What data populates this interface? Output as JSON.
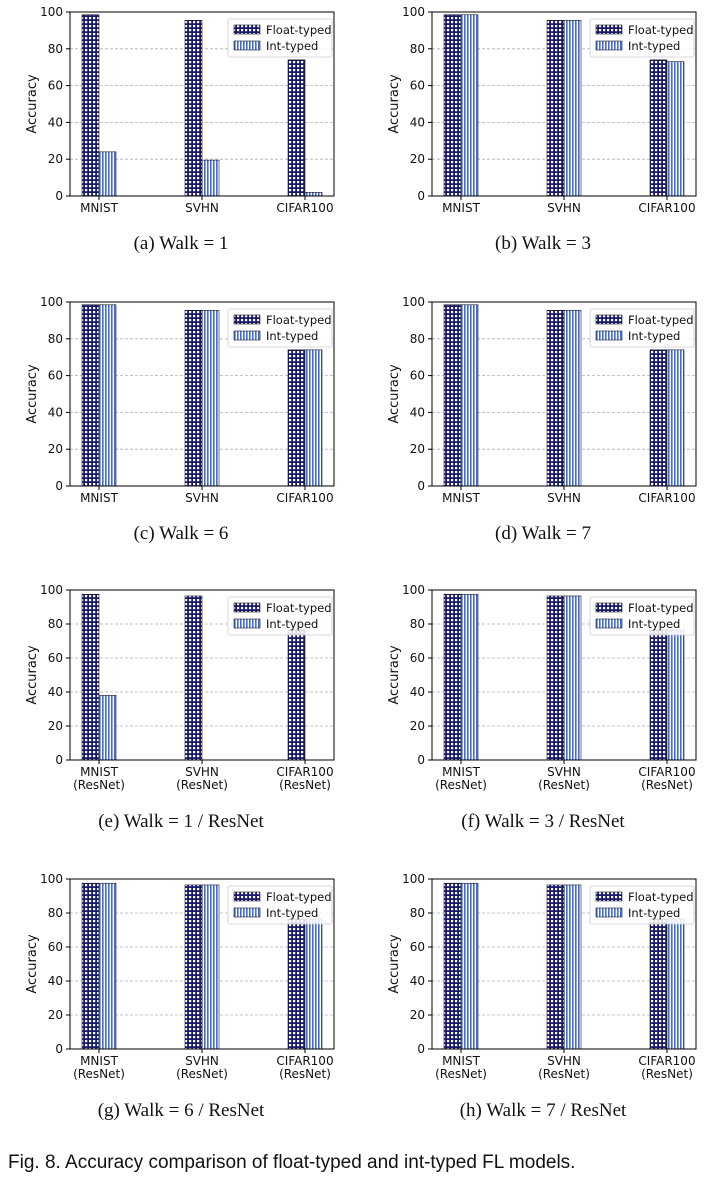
{
  "figure_caption": "Fig. 8. Accuracy comparison of float-typed and int-typed FL models.",
  "colors": {
    "float_fill": "#191970",
    "int_fill": "#4169e1",
    "edge": "#1a1a1a"
  },
  "chart_data": [
    {
      "type": "bar",
      "caption": "(a) Walk = 1",
      "ylabel": "Accuracy",
      "ylim": [
        0,
        100
      ],
      "yticks": [
        0,
        20,
        40,
        60,
        80,
        100
      ],
      "grid": true,
      "legend": "top-right",
      "categories": [
        [
          "MNIST"
        ],
        [
          "SVHN"
        ],
        [
          "CIFAR100"
        ]
      ],
      "series": [
        {
          "name": "Float-typed",
          "values": [
            98.5,
            95.5,
            74
          ]
        },
        {
          "name": "Int-typed",
          "values": [
            24,
            19.5,
            2
          ]
        }
      ]
    },
    {
      "type": "bar",
      "caption": "(b) Walk = 3",
      "ylabel": "Accuracy",
      "ylim": [
        0,
        100
      ],
      "yticks": [
        0,
        20,
        40,
        60,
        80,
        100
      ],
      "grid": true,
      "legend": "top-right",
      "categories": [
        [
          "MNIST"
        ],
        [
          "SVHN"
        ],
        [
          "CIFAR100"
        ]
      ],
      "series": [
        {
          "name": "Float-typed",
          "values": [
            98.5,
            95.5,
            74
          ]
        },
        {
          "name": "Int-typed",
          "values": [
            98.5,
            95.5,
            73
          ]
        }
      ]
    },
    {
      "type": "bar",
      "caption": "(c) Walk = 6",
      "ylabel": "Accuracy",
      "ylim": [
        0,
        100
      ],
      "yticks": [
        0,
        20,
        40,
        60,
        80,
        100
      ],
      "grid": true,
      "legend": "top-right",
      "categories": [
        [
          "MNIST"
        ],
        [
          "SVHN"
        ],
        [
          "CIFAR100"
        ]
      ],
      "series": [
        {
          "name": "Float-typed",
          "values": [
            98.5,
            95.5,
            74
          ]
        },
        {
          "name": "Int-typed",
          "values": [
            98.5,
            95.5,
            74
          ]
        }
      ]
    },
    {
      "type": "bar",
      "caption": "(d) Walk = 7",
      "ylabel": "Accuracy",
      "ylim": [
        0,
        100
      ],
      "yticks": [
        0,
        20,
        40,
        60,
        80,
        100
      ],
      "grid": true,
      "legend": "top-right",
      "categories": [
        [
          "MNIST"
        ],
        [
          "SVHN"
        ],
        [
          "CIFAR100"
        ]
      ],
      "series": [
        {
          "name": "Float-typed",
          "values": [
            98.5,
            95.5,
            74
          ]
        },
        {
          "name": "Int-typed",
          "values": [
            98.5,
            95.5,
            74
          ]
        }
      ]
    },
    {
      "type": "bar",
      "caption": "(e) Walk = 1 / ResNet",
      "ylabel": "Accuracy",
      "ylim": [
        0,
        100
      ],
      "yticks": [
        0,
        20,
        40,
        60,
        80,
        100
      ],
      "grid": true,
      "legend": "top-right",
      "categories": [
        [
          "MNIST",
          "(ResNet)"
        ],
        [
          "SVHN",
          "(ResNet)"
        ],
        [
          "CIFAR100",
          "(ResNet)"
        ]
      ],
      "series": [
        {
          "name": "Float-typed",
          "values": [
            97.5,
            96.5,
            76.5
          ]
        },
        {
          "name": "Int-typed",
          "values": [
            38,
            0,
            0
          ]
        }
      ]
    },
    {
      "type": "bar",
      "caption": "(f) Walk = 3 / ResNet",
      "ylabel": "Accuracy",
      "ylim": [
        0,
        100
      ],
      "yticks": [
        0,
        20,
        40,
        60,
        80,
        100
      ],
      "grid": true,
      "legend": "top-right",
      "categories": [
        [
          "MNIST",
          "(ResNet)"
        ],
        [
          "SVHN",
          "(ResNet)"
        ],
        [
          "CIFAR100",
          "(ResNet)"
        ]
      ],
      "series": [
        {
          "name": "Float-typed",
          "values": [
            97.5,
            96.5,
            76.5
          ]
        },
        {
          "name": "Int-typed",
          "values": [
            97.5,
            96.5,
            76.5
          ]
        }
      ]
    },
    {
      "type": "bar",
      "caption": "(g) Walk = 6 / ResNet",
      "ylabel": "Accuracy",
      "ylim": [
        0,
        100
      ],
      "yticks": [
        0,
        20,
        40,
        60,
        80,
        100
      ],
      "grid": true,
      "legend": "top-right",
      "categories": [
        [
          "MNIST",
          "(ResNet)"
        ],
        [
          "SVHN",
          "(ResNet)"
        ],
        [
          "CIFAR100",
          "(ResNet)"
        ]
      ],
      "series": [
        {
          "name": "Float-typed",
          "values": [
            97.5,
            96.5,
            76.5
          ]
        },
        {
          "name": "Int-typed",
          "values": [
            97.5,
            96.5,
            76.5
          ]
        }
      ]
    },
    {
      "type": "bar",
      "caption": "(h) Walk = 7 / ResNet",
      "ylabel": "Accuracy",
      "ylim": [
        0,
        100
      ],
      "yticks": [
        0,
        20,
        40,
        60,
        80,
        100
      ],
      "grid": true,
      "legend": "top-right",
      "categories": [
        [
          "MNIST",
          "(ResNet)"
        ],
        [
          "SVHN",
          "(ResNet)"
        ],
        [
          "CIFAR100",
          "(ResNet)"
        ]
      ],
      "series": [
        {
          "name": "Float-typed",
          "values": [
            97.5,
            96.5,
            76.5
          ]
        },
        {
          "name": "Int-typed",
          "values": [
            97.5,
            96.5,
            76.5
          ]
        }
      ]
    }
  ]
}
